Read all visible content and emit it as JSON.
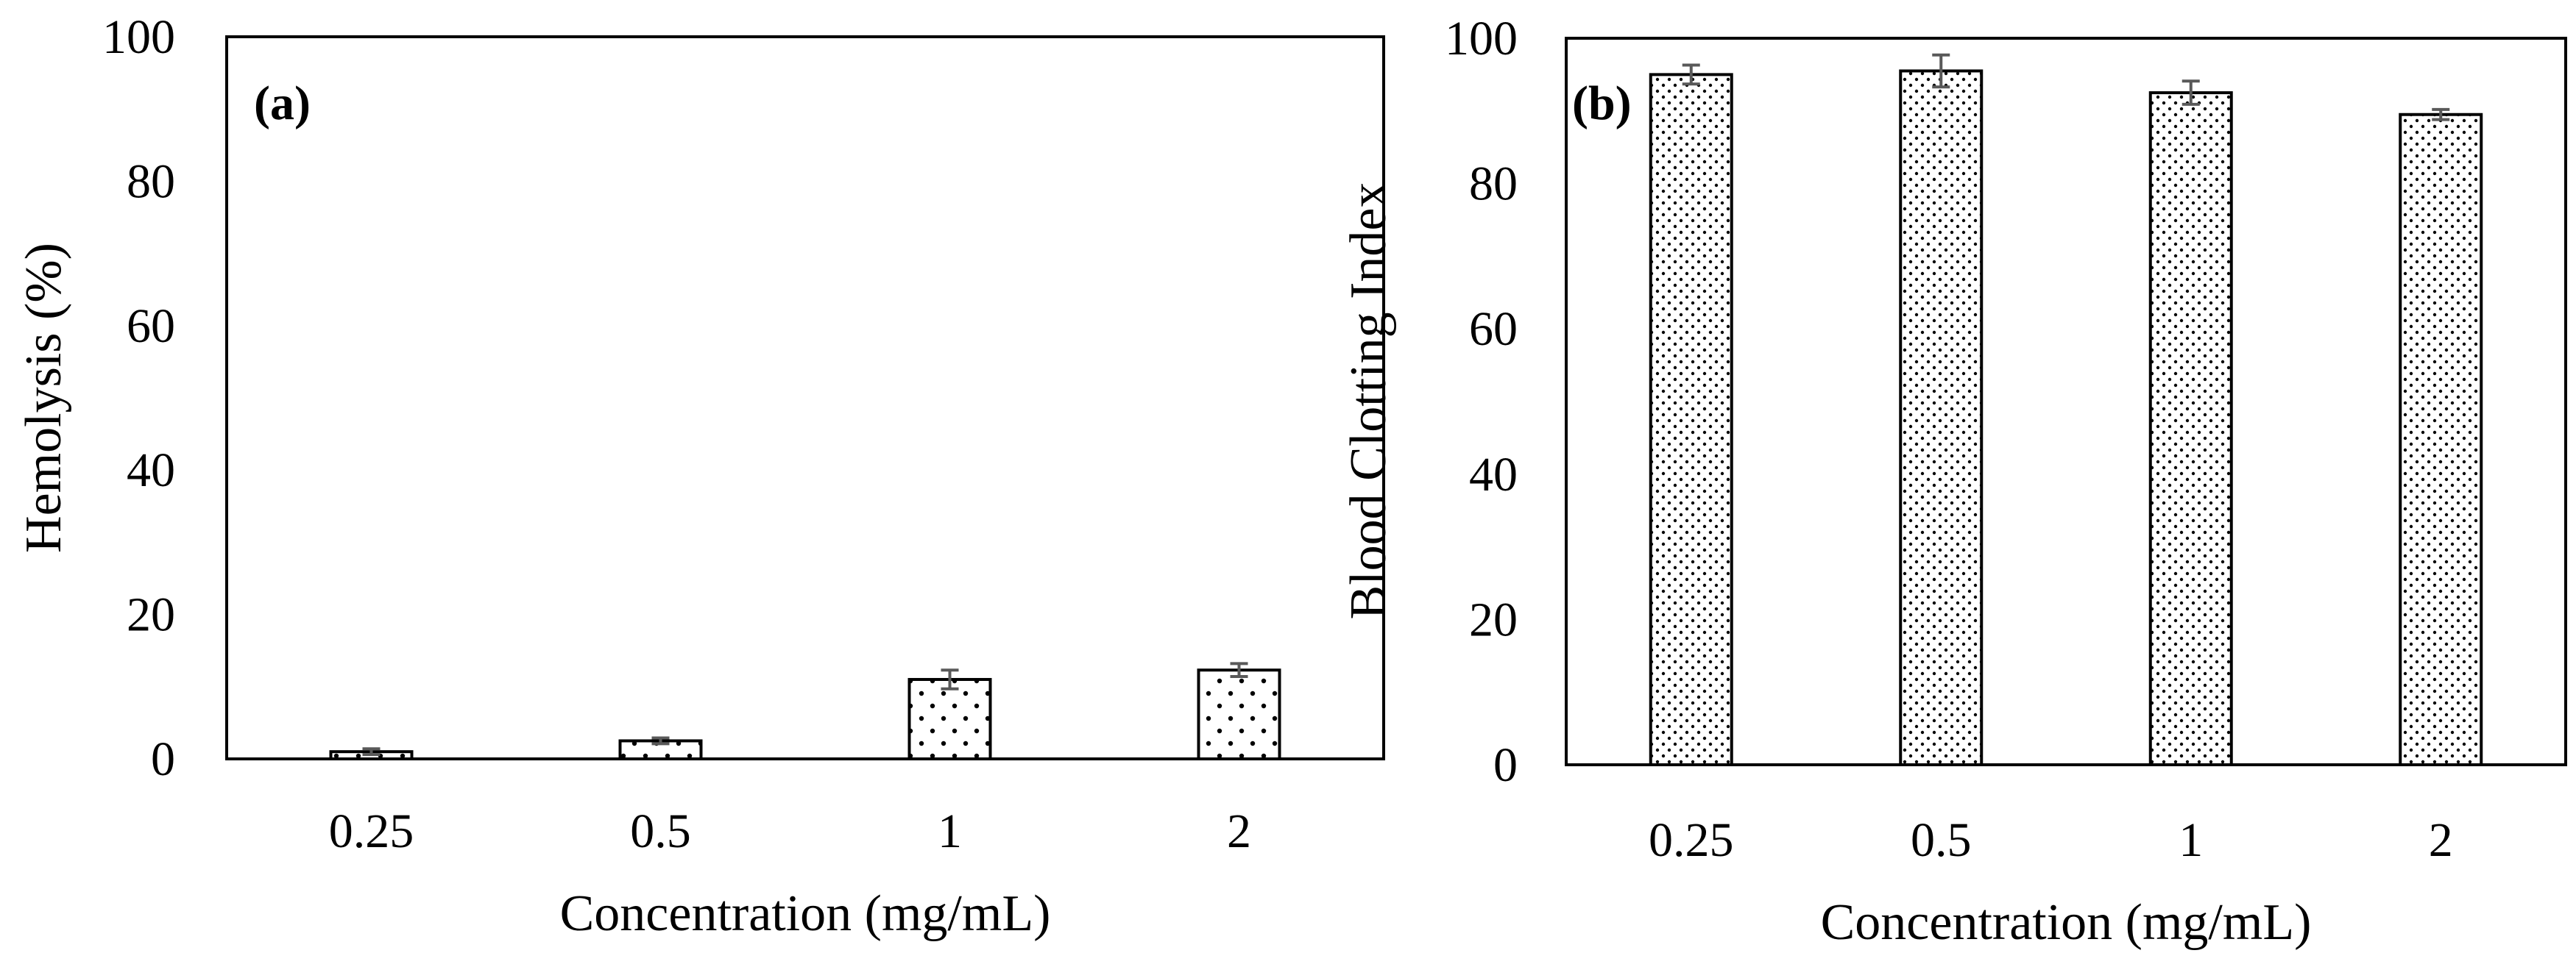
{
  "chart_data": [
    {
      "type": "bar",
      "panel_label": "(a)",
      "categories": [
        "0.25",
        "0.5",
        "1",
        "2"
      ],
      "values": [
        1.0,
        2.5,
        11.0,
        12.3
      ],
      "errors": [
        0.4,
        0.4,
        1.3,
        0.9
      ],
      "pattern": "sparse-dots",
      "ylim": [
        0,
        100
      ],
      "yticks": [
        "0",
        "20",
        "40",
        "60",
        "80",
        "100"
      ],
      "ylabel": "Hemolysis (%)",
      "xlabel": "Concentration (mg/mL)",
      "colors": {
        "bar_fill": "#ffffff",
        "bar_edge": "#000000",
        "dot": "#000000",
        "error_bar": "#595959"
      }
    },
    {
      "type": "bar",
      "panel_label": "(b)",
      "categories": [
        "0.25",
        "0.5",
        "1",
        "2"
      ],
      "values": [
        95.0,
        95.5,
        92.5,
        89.5
      ],
      "errors": [
        1.3,
        2.2,
        1.6,
        0.7
      ],
      "pattern": "dense-dots",
      "ylim": [
        0,
        100
      ],
      "yticks": [
        "0",
        "20",
        "40",
        "60",
        "80",
        "100"
      ],
      "ylabel": "Blood Clotting Index",
      "xlabel": "Concentration (mg/mL)",
      "colors": {
        "bar_fill": "#ffffff",
        "bar_edge": "#000000",
        "dot": "#000000",
        "error_bar": "#595959"
      }
    }
  ]
}
